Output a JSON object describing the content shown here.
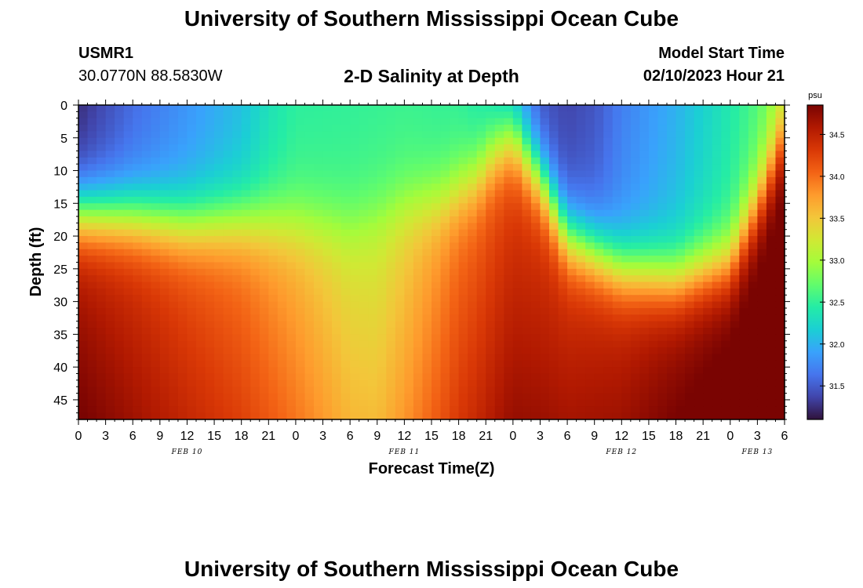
{
  "page": {
    "title": "University of Southern Mississippi Ocean Cube",
    "station": "USMR1",
    "coords": "30.0770N  88.5830W",
    "plot_title": "2-D Salinity at Depth",
    "model_label": "Model Start Time",
    "model_time": "02/10/2023 Hour 21",
    "footer_title": "University of Southern Mississippi Ocean Cube"
  },
  "colors": {
    "colormap": [
      "#30123b",
      "#4145ab",
      "#4675ed",
      "#39a2fc",
      "#1bcfd4",
      "#24eca6",
      "#61fc6c",
      "#a4fc3b",
      "#d1e834",
      "#f3c63a",
      "#fe9b2d",
      "#f36315",
      "#d93806",
      "#b11901",
      "#7a0402"
    ]
  },
  "chart_data": {
    "type": "heatmap",
    "title": "2-D Salinity at Depth",
    "xlabel": "Forecast Time(Z)",
    "ylabel": "Depth (ft)",
    "x_hours": [
      0,
      3,
      6,
      9,
      12,
      15,
      18,
      21,
      24,
      27,
      30,
      33,
      36,
      39,
      42,
      45,
      48,
      51,
      54,
      57,
      60,
      63,
      66,
      69,
      72,
      75,
      78
    ],
    "x_tick_labels": [
      "0",
      "3",
      "6",
      "9",
      "12",
      "15",
      "18",
      "21",
      "0",
      "3",
      "6",
      "9",
      "12",
      "15",
      "18",
      "21",
      "0",
      "3",
      "6",
      "9",
      "12",
      "15",
      "18",
      "21",
      "0",
      "3",
      "6"
    ],
    "day_labels": [
      {
        "label": "FEB 10",
        "hour": 12
      },
      {
        "label": "FEB 11",
        "hour": 36
      },
      {
        "label": "FEB 12",
        "hour": 60
      },
      {
        "label": "FEB 13",
        "hour": 75
      }
    ],
    "ylim": [
      0,
      48
    ],
    "y_ticks": [
      0,
      5,
      10,
      15,
      20,
      25,
      30,
      35,
      40,
      45
    ],
    "y_tick_labels": [
      "0",
      "5",
      "10",
      "15",
      "20",
      "25",
      "30",
      "35",
      "40",
      "45"
    ],
    "colorbar": {
      "unit": "psu",
      "range": [
        31.1,
        34.85
      ],
      "ticks": [
        31.5,
        32.0,
        32.5,
        33.0,
        33.5,
        34.0,
        34.5
      ],
      "tick_labels": [
        "31.5",
        "32.0",
        "32.5",
        "33.0",
        "33.5",
        "34.0",
        "34.5"
      ]
    },
    "halocline_depth_ft": [
      [
        0,
        16.5
      ],
      [
        6,
        17
      ],
      [
        12,
        18
      ],
      [
        18,
        17.5
      ],
      [
        24,
        18
      ],
      [
        30,
        18.5
      ],
      [
        36,
        15
      ],
      [
        40,
        14.5
      ],
      [
        44,
        11
      ],
      [
        46,
        7
      ],
      [
        48,
        5
      ],
      [
        51,
        11
      ],
      [
        54,
        20
      ],
      [
        60,
        25
      ],
      [
        66,
        26.5
      ],
      [
        72,
        24
      ],
      [
        75,
        15
      ],
      [
        78,
        4
      ]
    ],
    "surface_salinity_psu": [
      [
        0,
        31.3
      ],
      [
        6,
        31.65
      ],
      [
        12,
        31.9
      ],
      [
        18,
        32.15
      ],
      [
        21,
        32.4
      ],
      [
        24,
        32.55
      ],
      [
        36,
        32.6
      ],
      [
        42,
        32.55
      ],
      [
        45,
        32.4
      ],
      [
        48,
        32.0
      ],
      [
        51,
        31.5
      ],
      [
        54,
        31.45
      ],
      [
        57,
        31.55
      ],
      [
        60,
        31.8
      ],
      [
        66,
        32.1
      ],
      [
        72,
        32.5
      ],
      [
        75,
        32.7
      ],
      [
        78,
        33.05
      ]
    ],
    "deep_salinity_psu": [
      [
        0,
        34.5
      ],
      [
        6,
        34.3
      ],
      [
        12,
        34.1
      ],
      [
        18,
        33.9
      ],
      [
        24,
        33.6
      ],
      [
        30,
        33.25
      ],
      [
        33,
        33.2
      ],
      [
        36,
        33.4
      ],
      [
        42,
        33.9
      ],
      [
        48,
        34.2
      ],
      [
        54,
        34.3
      ],
      [
        60,
        34.4
      ],
      [
        66,
        34.6
      ],
      [
        72,
        34.75
      ],
      [
        78,
        34.8
      ]
    ]
  }
}
